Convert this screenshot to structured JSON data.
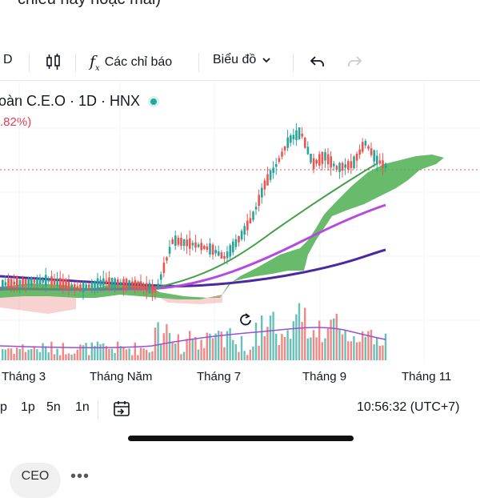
{
  "caption": "chiều nay hoặc mai)",
  "toolbar": {
    "interval": "D",
    "indicators_label": "Các chỉ báo",
    "chart_type_label": "Biểu đồ"
  },
  "legend": {
    "symbol": "oàn C.E.O · 1D · HNX",
    "change": ".82%)"
  },
  "xaxis": [
    "Tháng 3",
    "Tháng Năm",
    "Tháng 7",
    "Tháng 9",
    "Tháng 11"
  ],
  "timeframes": [
    "p",
    "1p",
    "5n",
    "1n"
  ],
  "clock": "10:56:32 (UTC+7)",
  "chip": "CEO",
  "more": "•••",
  "colors": {
    "up": "#26a69a",
    "down": "#ef5350",
    "cloud": "#4caf50",
    "ma_slow": "#4a2a9e",
    "ma_fast": "#b44be1"
  },
  "icons": [
    "candles-icon",
    "function-icon",
    "chevron-down-icon",
    "undo-icon",
    "redo-icon",
    "live-dot-icon",
    "reset-icon",
    "calendar-jump-icon"
  ]
}
